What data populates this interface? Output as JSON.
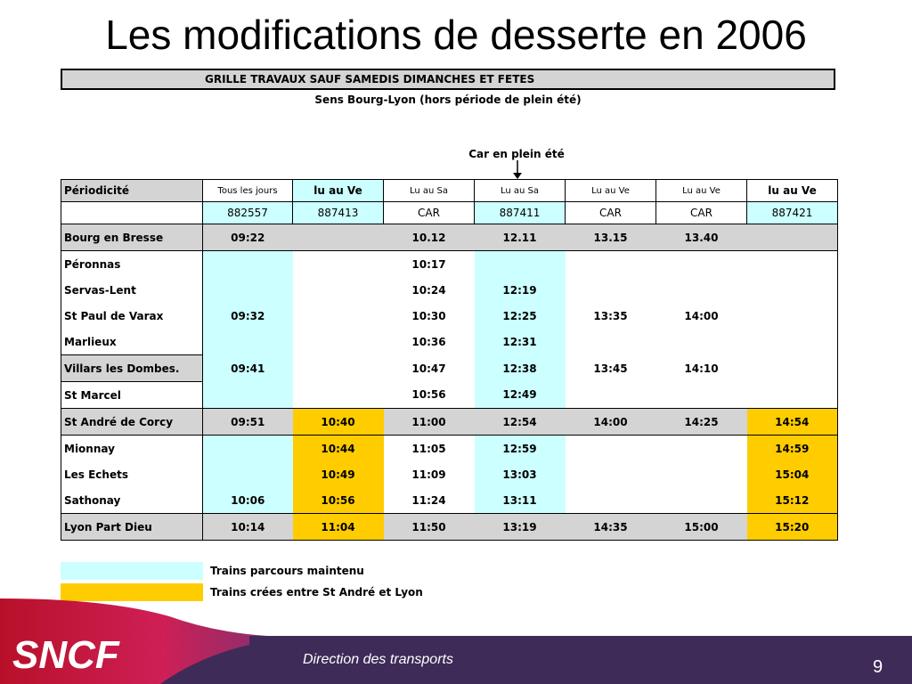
{
  "slide": {
    "title": "Les modifications de desserte en 2006",
    "banner": "GRILLE TRAVAUX SAUF SAMEDIS DIMANCHES ET FETES",
    "subtitle": "Sens Bourg-Lyon (hors période de plein été)",
    "car_note": "Car en plein été",
    "page_number": "9",
    "footer_text": "Direction des transports",
    "logo_text": "SNCF"
  },
  "table": {
    "periodicity_label": "Périodicité",
    "columns": [
      {
        "periodicity": "Tous les jours",
        "number": "882557"
      },
      {
        "periodicity": "lu au Ve",
        "number": "887413"
      },
      {
        "periodicity": "Lu au Sa",
        "number": "CAR"
      },
      {
        "periodicity": "Lu au Sa",
        "number": "887411"
      },
      {
        "periodicity": "Lu au Ve",
        "number": "CAR"
      },
      {
        "periodicity": "Lu au Ve",
        "number": "CAR"
      },
      {
        "periodicity": "lu au Ve",
        "number": "887421"
      }
    ],
    "rows": [
      {
        "station": "Bourg en Bresse",
        "times": [
          "09:22",
          "",
          "10.12",
          "12.11",
          "13.15",
          "13.40",
          ""
        ]
      },
      {
        "station": "Péronnas",
        "times": [
          "",
          "",
          "10:17",
          "",
          "",
          "",
          ""
        ]
      },
      {
        "station": "Servas-Lent",
        "times": [
          "",
          "",
          "10:24",
          "12:19",
          "",
          "",
          ""
        ]
      },
      {
        "station": "St Paul de Varax",
        "times": [
          "09:32",
          "",
          "10:30",
          "12:25",
          "13:35",
          "14:00",
          ""
        ]
      },
      {
        "station": "Marlieux",
        "times": [
          "",
          "",
          "10:36",
          "12:31",
          "",
          "",
          ""
        ]
      },
      {
        "station": "Villars les Dombes.",
        "times": [
          "09:41",
          "",
          "10:47",
          "12:38",
          "13:45",
          "14:10",
          ""
        ]
      },
      {
        "station": "St Marcel",
        "times": [
          "",
          "",
          "10:56",
          "12:49",
          "",
          "",
          ""
        ]
      },
      {
        "station": "St André de Corcy",
        "times": [
          "09:51",
          "10:40",
          "11:00",
          "12:54",
          "14:00",
          "14:25",
          "14:54"
        ]
      },
      {
        "station": "Mionnay",
        "times": [
          "",
          "10:44",
          "11:05",
          "12:59",
          "",
          "",
          "14:59"
        ]
      },
      {
        "station": "Les Echets",
        "times": [
          "",
          "10:49",
          "11:09",
          "13:03",
          "",
          "",
          "15:04"
        ]
      },
      {
        "station": "Sathonay",
        "times": [
          "10:06",
          "10:56",
          "11:24",
          "13:11",
          "",
          "",
          "15:12"
        ]
      },
      {
        "station": "Lyon Part Dieu",
        "times": [
          "10:14",
          "11:04",
          "11:50",
          "13:19",
          "14:35",
          "15:00",
          "15:20"
        ]
      }
    ]
  },
  "legend": [
    {
      "label": "Trains parcours maintenu",
      "color": "#ccffff"
    },
    {
      "label": "Trains crées entre St André et Lyon",
      "color": "#ffcc00"
    }
  ],
  "colors": {
    "gray_row": "#d4d4d4",
    "cyan": "#ccffff",
    "yellow": "#ffcc00",
    "footer_purple": "#3e2b58",
    "logo_red": "#c8102e"
  }
}
